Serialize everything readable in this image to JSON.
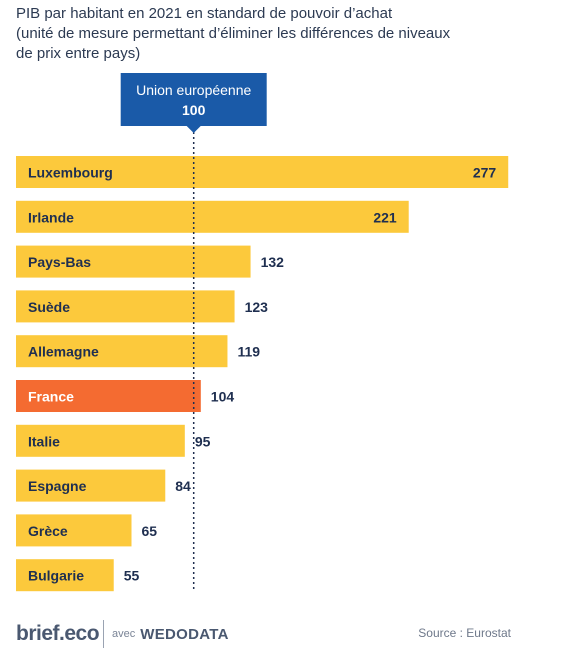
{
  "title_lines": [
    "PIB par habitant en 2021 en standard de pouvoir d’achat",
    "(unité de mesure permettant d’éliminer les différences de niveaux",
    "de prix entre pays)"
  ],
  "reference": {
    "label": "Union européenne",
    "value": "100",
    "numeric": 100,
    "color": "#1a5aa8"
  },
  "chart_data": {
    "type": "bar",
    "orientation": "horizontal",
    "title": "PIB par habitant en 2021 en standard de pouvoir d’achat (unité de mesure permettant d’éliminer les différences de niveaux de prix entre pays)",
    "categories": [
      "Luxembourg",
      "Irlande",
      "Pays-Bas",
      "Suède",
      "Allemagne",
      "France",
      "Italie",
      "Espagne",
      "Grèce",
      "Bulgarie"
    ],
    "values": [
      277,
      221,
      132,
      123,
      119,
      104,
      95,
      84,
      65,
      55
    ],
    "highlight": "France",
    "reference_line": 100,
    "colors": {
      "default": "#fcc93c",
      "highlight": "#f46b31",
      "label_text": "#1f2f50",
      "reference_line": "#1f2f50"
    },
    "grid": false,
    "legend": "none"
  },
  "footer": {
    "logo": "brief.eco",
    "with": "avec",
    "partner": "WEDODATA",
    "source": "Source : Eurostat"
  }
}
